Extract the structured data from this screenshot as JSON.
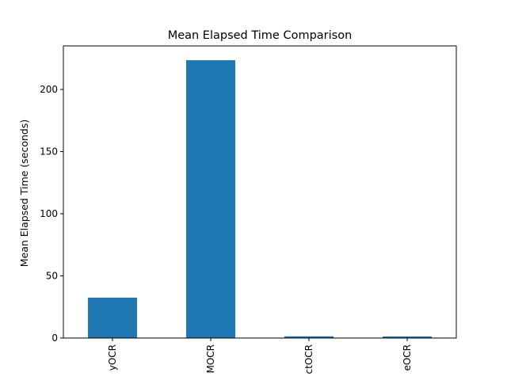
{
  "chart_data": {
    "type": "bar",
    "title": "Mean Elapsed Time Comparison",
    "xlabel": "",
    "ylabel": "Mean Elapsed Time (seconds)",
    "categories": [
      "yOCR",
      "MOCR",
      "ctOCR",
      "eOCR"
    ],
    "values": [
      32.5,
      223.5,
      1.4,
      1.3
    ],
    "ylim": [
      0,
      235
    ],
    "yticks": [
      0,
      50,
      100,
      150,
      200
    ],
    "grid": false,
    "legend": "none",
    "bar_color": "#1f77b4"
  }
}
